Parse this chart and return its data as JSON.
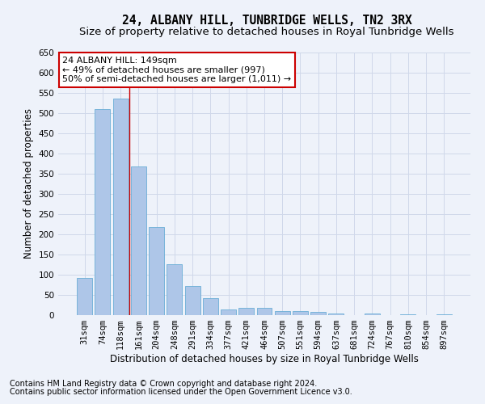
{
  "title": "24, ALBANY HILL, TUNBRIDGE WELLS, TN2 3RX",
  "subtitle": "Size of property relative to detached houses in Royal Tunbridge Wells",
  "xlabel": "Distribution of detached houses by size in Royal Tunbridge Wells",
  "ylabel": "Number of detached properties",
  "footnote1": "Contains HM Land Registry data © Crown copyright and database right 2024.",
  "footnote2": "Contains public sector information licensed under the Open Government Licence v3.0.",
  "categories": [
    "31sqm",
    "74sqm",
    "118sqm",
    "161sqm",
    "204sqm",
    "248sqm",
    "291sqm",
    "334sqm",
    "377sqm",
    "421sqm",
    "464sqm",
    "507sqm",
    "551sqm",
    "594sqm",
    "637sqm",
    "681sqm",
    "724sqm",
    "767sqm",
    "810sqm",
    "854sqm",
    "897sqm"
  ],
  "values": [
    92,
    510,
    537,
    368,
    218,
    127,
    73,
    43,
    15,
    19,
    19,
    11,
    11,
    8,
    5,
    0,
    5,
    0,
    3,
    0,
    3
  ],
  "bar_color": "#aec6e8",
  "bar_edge_color": "#6aaed6",
  "ylim": [
    0,
    650
  ],
  "yticks": [
    0,
    50,
    100,
    150,
    200,
    250,
    300,
    350,
    400,
    450,
    500,
    550,
    600,
    650
  ],
  "grid_color": "#d0d8ea",
  "annotation_text": "24 ALBANY HILL: 149sqm\n← 49% of detached houses are smaller (997)\n50% of semi-detached houses are larger (1,011) →",
  "annotation_box_color": "#ffffff",
  "annotation_box_edge": "#cc0000",
  "redline_x": 2.5,
  "title_fontsize": 10.5,
  "subtitle_fontsize": 9.5,
  "tick_fontsize": 7.5,
  "ylabel_fontsize": 8.5,
  "xlabel_fontsize": 8.5,
  "annotation_fontsize": 8,
  "footnote_fontsize": 7,
  "bg_color": "#eef2fa"
}
